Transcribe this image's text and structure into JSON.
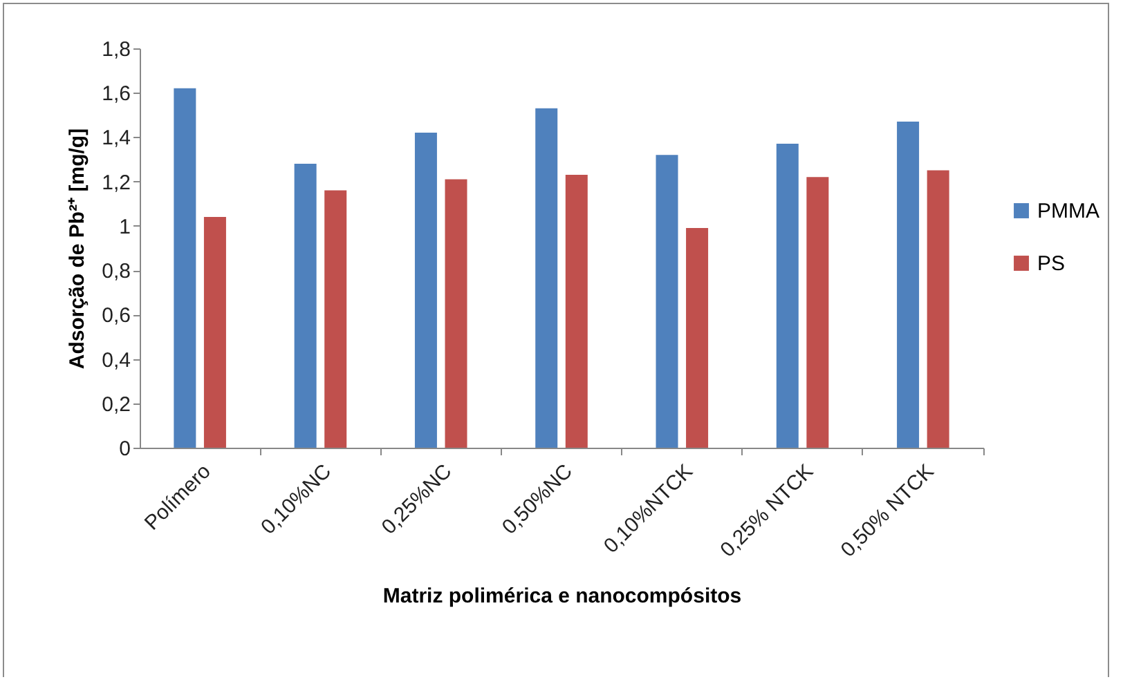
{
  "chart_data": {
    "type": "bar",
    "xlabel": "Matriz polimérica e nanocompósitos",
    "ylabel": "Adsorção de Pb²⁺ [mg/g]",
    "categories": [
      "Polímero",
      "0,10%NC",
      "0,25%NC",
      "0,50%NC",
      "0,10%NTCK",
      "0,25% NTCK",
      "0,50% NTCK"
    ],
    "series": [
      {
        "name": "PMMA",
        "color": "#4f81bd",
        "values": [
          1.62,
          1.28,
          1.42,
          1.53,
          1.32,
          1.37,
          1.47
        ]
      },
      {
        "name": "PS",
        "color": "#c0504d",
        "values": [
          1.04,
          1.16,
          1.21,
          1.23,
          0.99,
          1.22,
          1.25
        ]
      }
    ],
    "ylim": [
      0,
      1.8
    ],
    "yticks": [
      {
        "value": 0,
        "label": "0"
      },
      {
        "value": 0.2,
        "label": "0,2"
      },
      {
        "value": 0.4,
        "label": "0,4"
      },
      {
        "value": 0.6,
        "label": "0,6"
      },
      {
        "value": 0.8,
        "label": "0,8"
      },
      {
        "value": 1,
        "label": "1"
      },
      {
        "value": 1.2,
        "label": "1,2"
      },
      {
        "value": 1.4,
        "label": "1,4"
      },
      {
        "value": 1.6,
        "label": "1,6"
      },
      {
        "value": 1.8,
        "label": "1,8"
      }
    ],
    "grid": false,
    "legend": "right"
  }
}
